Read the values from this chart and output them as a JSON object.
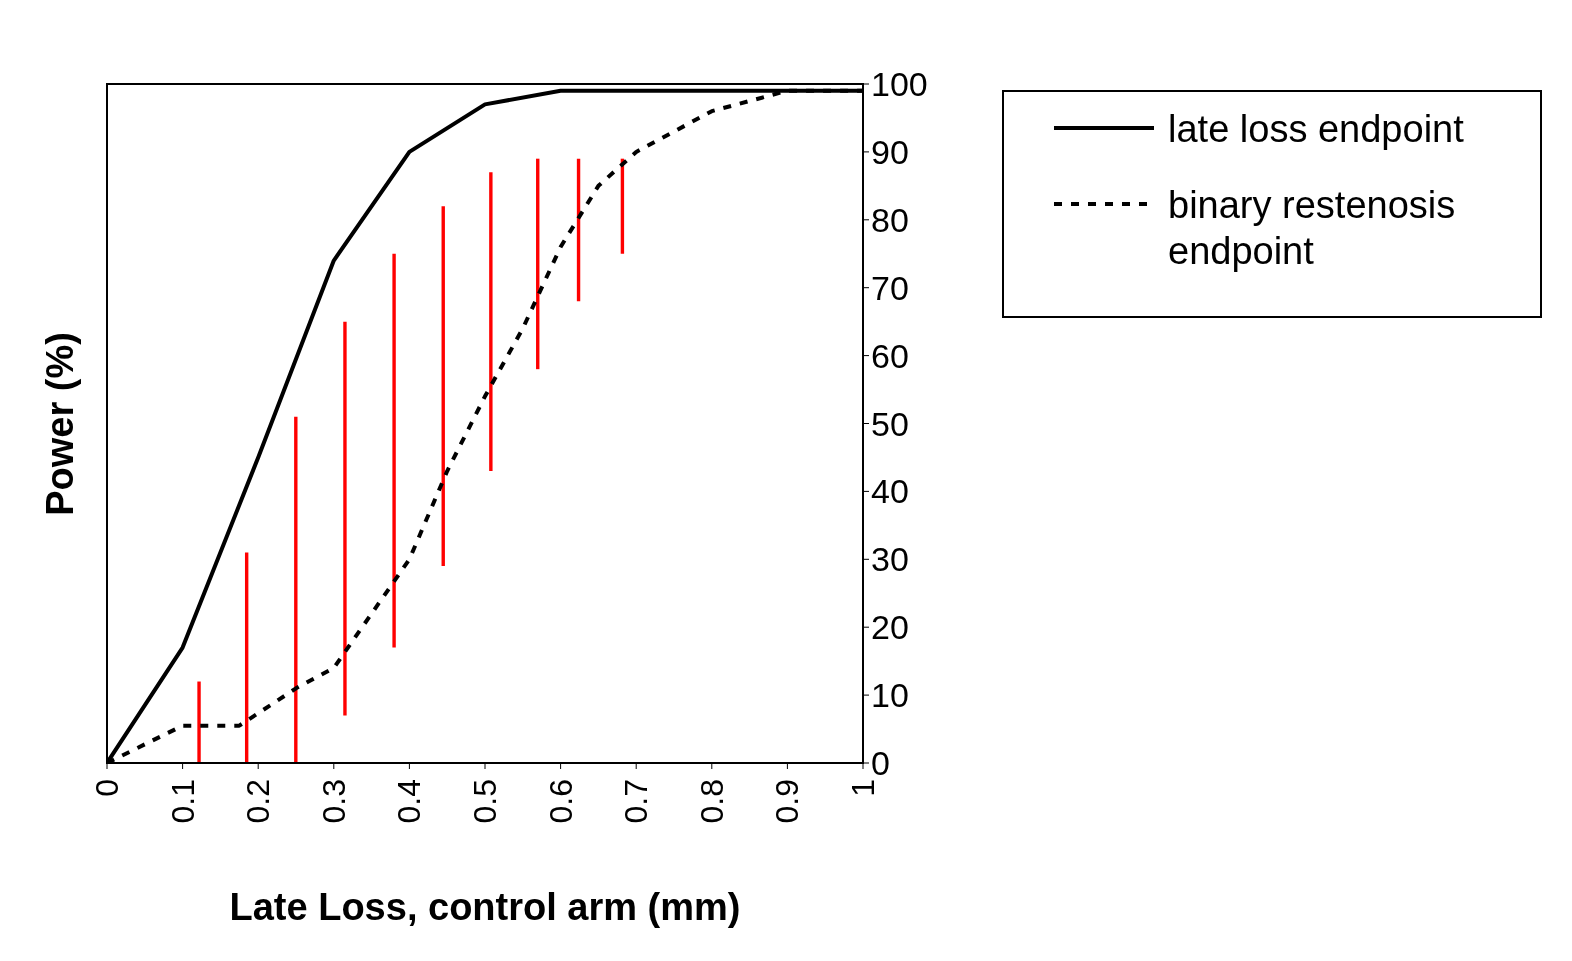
{
  "chart_data": {
    "type": "line",
    "xlabel": "Late Loss, control arm (mm)",
    "ylabel": "Power (%)",
    "xlim": [
      0,
      1
    ],
    "xticks": [
      0,
      0.1,
      0.2,
      0.3,
      0.4,
      0.5,
      0.6,
      0.7,
      0.8,
      0.9,
      1
    ],
    "ylim": [
      0,
      100
    ],
    "yticks": [
      0,
      10,
      20,
      30,
      40,
      50,
      60,
      70,
      80,
      90,
      100
    ],
    "legend": "right",
    "marker": "none",
    "series": [
      {
        "name": "late loss endpoint",
        "line_style": "solid",
        "color": "#000000",
        "x": [
          0,
          0.1,
          0.2,
          0.3,
          0.4,
          0.5,
          0.6,
          0.7,
          0.8,
          0.9,
          1
        ],
        "values": [
          0,
          17,
          45,
          74,
          90,
          97,
          99,
          99,
          99,
          99,
          99
        ]
      },
      {
        "name": "binary restenosis endpoint",
        "line_style": "dashed",
        "color": "#000000",
        "x": [
          0,
          0.1,
          0.175,
          0.25,
          0.3,
          0.35,
          0.4,
          0.45,
          0.5,
          0.55,
          0.6,
          0.65,
          0.7,
          0.75,
          0.8,
          0.9,
          1
        ],
        "values": [
          0,
          5.5,
          5.5,
          11,
          14,
          22,
          30,
          43,
          54,
          64,
          76,
          85,
          90,
          93,
          96,
          99,
          99
        ]
      },
      {
        "type": "bar",
        "color": "#ff0000",
        "x": [
          0.122,
          0.185,
          0.25,
          0.315,
          0.38,
          0.445,
          0.508,
          0.57,
          0.624,
          0.682
        ],
        "base": [
          0,
          0,
          0,
          7,
          17,
          29,
          43,
          58,
          68,
          75
        ],
        "values": [
          12,
          31,
          51,
          58,
          58,
          53,
          44,
          31,
          21,
          14
        ]
      }
    ]
  }
}
